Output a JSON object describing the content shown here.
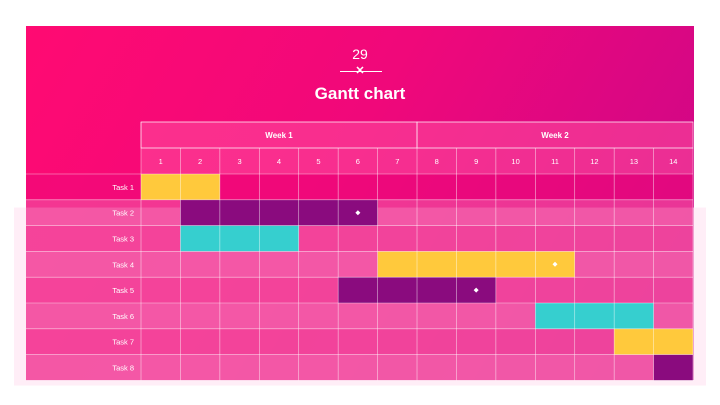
{
  "slide": {
    "number": "29",
    "title": "Gantt chart"
  },
  "chart_data": {
    "type": "gantt",
    "title": "Gantt chart",
    "weeks": [
      {
        "label": "Week 1",
        "days": [
          1,
          7
        ]
      },
      {
        "label": "Week 2",
        "days": [
          8,
          14
        ]
      }
    ],
    "days": [
      "1",
      "2",
      "3",
      "4",
      "5",
      "6",
      "7",
      "8",
      "9",
      "10",
      "11",
      "12",
      "13",
      "14"
    ],
    "tasks": [
      {
        "name": "Task 1",
        "start": 1,
        "end": 2,
        "color": "#ffc93c"
      },
      {
        "name": "Task 2",
        "start": 2,
        "end": 6,
        "color": "#8a0b7e",
        "milestone": 6
      },
      {
        "name": "Task 3",
        "start": 2,
        "end": 4,
        "color": "#36cfcf"
      },
      {
        "name": "Task 4",
        "start": 7,
        "end": 11,
        "color": "#ffc93c",
        "milestone": 11
      },
      {
        "name": "Task 5",
        "start": 6,
        "end": 9,
        "color": "#8a0b7e",
        "milestone": 9
      },
      {
        "name": "Task 6",
        "start": 11,
        "end": 13,
        "color": "#36cfcf"
      },
      {
        "name": "Task 7",
        "start": 13,
        "end": 14,
        "color": "#ffc93c"
      },
      {
        "name": "Task 8",
        "start": 14,
        "end": 14,
        "color": "#8a0b7e"
      }
    ]
  },
  "colors": {
    "yellow": "#ffc93c",
    "purple": "#8a0b7e",
    "teal": "#36cfcf",
    "grid": "#ffffff"
  }
}
